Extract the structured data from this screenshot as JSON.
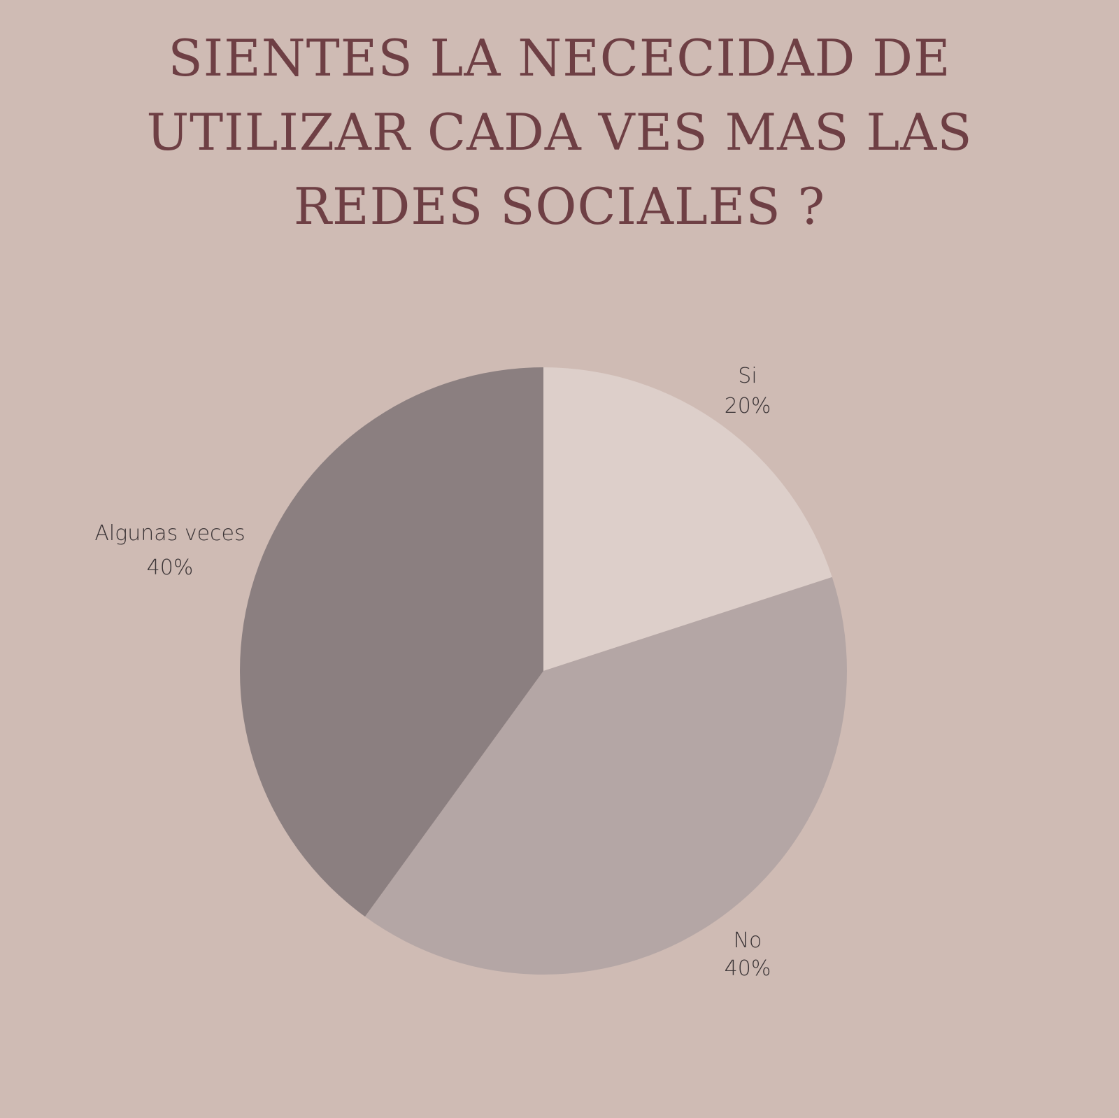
{
  "colors": {
    "background": "#cfbbb4",
    "title": "#6e3f44",
    "label": "#3b3436"
  },
  "chart_data": {
    "type": "pie",
    "title_lines": [
      "SIENTES LA NECECIDAD DE",
      "UTILIZAR CADA VES MAS LAS",
      "REDES SOCIALES ?"
    ],
    "slices": [
      {
        "label": "Si",
        "value": 20,
        "display": "20%",
        "color": "#ddcfca"
      },
      {
        "label": "No",
        "value": 40,
        "display": "40%",
        "color": "#b4a6a5"
      },
      {
        "label": "Algunas veces",
        "value": 40,
        "display": "40%",
        "color": "#8b7f80"
      }
    ],
    "start": "top",
    "direction": "clockwise"
  }
}
